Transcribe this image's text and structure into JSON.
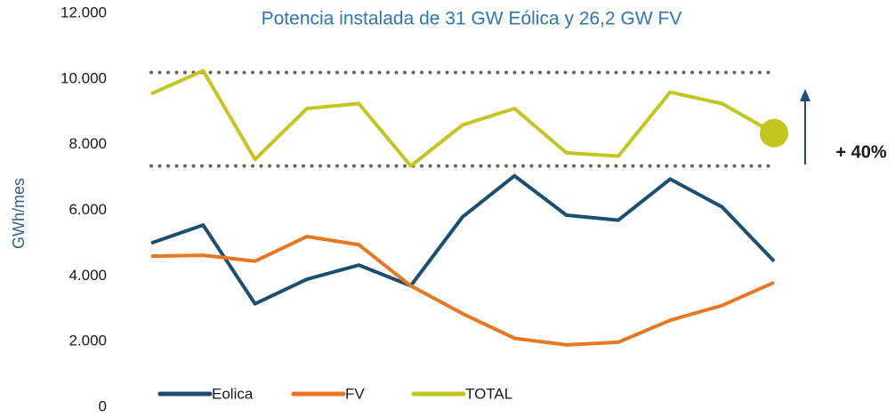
{
  "chart_data": {
    "type": "line",
    "title": "Potencia instalada de 31 GW Eólica y 26,2 GW FV",
    "ylabel": "GWh/mes",
    "categories": [
      null,
      null,
      null,
      null,
      null,
      null,
      null,
      null,
      null,
      null,
      null,
      null,
      null
    ],
    "series": [
      {
        "name": "Eolica",
        "color": "#1b4f72",
        "values": [
          5000,
          5550,
          3150,
          3900,
          4330,
          3700,
          5800,
          7050,
          5850,
          5700,
          6950,
          6100,
          4450
        ]
      },
      {
        "name": "FV",
        "color": "#e87722",
        "values": [
          4600,
          4630,
          4450,
          5200,
          4950,
          3700,
          2850,
          2100,
          1900,
          1980,
          2650,
          3100,
          3800
        ]
      },
      {
        "name": "TOTAL",
        "color": "#c3c521",
        "values": [
          9550,
          10250,
          7550,
          9100,
          9250,
          7350,
          8600,
          9100,
          7750,
          7650,
          9600,
          9250,
          8350
        ],
        "highlight_last": true
      }
    ],
    "ylim": [
      0,
      12000
    ],
    "yticks": [
      0,
      {
        "value": 2000,
        "label": "2.000"
      },
      {
        "value": 4000,
        "label": "4.000"
      },
      {
        "value": 6000,
        "label": "6.000"
      },
      {
        "value": 8000,
        "label": "8.000"
      },
      {
        "value": 10000,
        "label": "10.000"
      },
      {
        "value": 12000,
        "label": "12.000"
      }
    ],
    "reference_lines": [
      10200,
      7350
    ],
    "reference_color": "#6b6353",
    "annotation": "+ 40%",
    "grid": false,
    "legend": "bottom"
  }
}
